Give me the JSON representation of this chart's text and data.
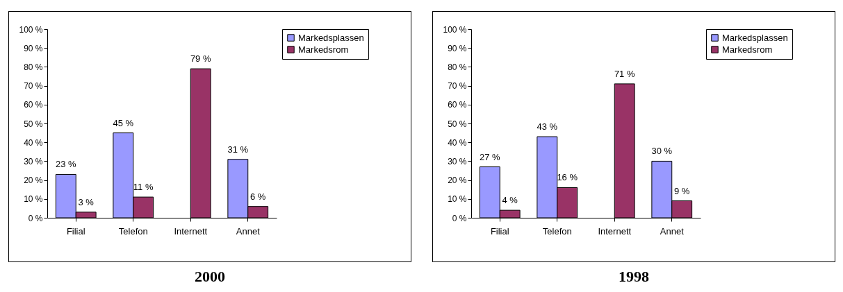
{
  "chart_data": [
    {
      "type": "bar",
      "title": "2000",
      "categories": [
        "Filial",
        "Telefon",
        "Internett",
        "Annet"
      ],
      "series": [
        {
          "name": "Markedsplassen",
          "color": "#9999ff",
          "values": [
            23,
            45,
            null,
            31
          ],
          "value_labels": [
            "23 %",
            "45 %",
            null,
            "31 %"
          ]
        },
        {
          "name": "Markedsrom",
          "color": "#993366",
          "values": [
            3,
            11,
            79,
            6
          ],
          "value_labels": [
            "3 %",
            "11 %",
            "79 %",
            "6 %"
          ]
        }
      ],
      "ylim": [
        0,
        100
      ],
      "yticks": [
        {
          "value": 0,
          "label": "0 %"
        },
        {
          "value": 10,
          "label": "10 %"
        },
        {
          "value": 20,
          "label": "20 %"
        },
        {
          "value": 30,
          "label": "30 %"
        },
        {
          "value": 40,
          "label": "40 %"
        },
        {
          "value": 50,
          "label": "50 %"
        },
        {
          "value": 60,
          "label": "60 %"
        },
        {
          "value": 70,
          "label": "70 %"
        },
        {
          "value": 80,
          "label": "80 %"
        },
        {
          "value": 90,
          "label": "90 %"
        },
        {
          "value": 100,
          "label": "100 %"
        }
      ],
      "grid": false,
      "legend": "right"
    },
    {
      "type": "bar",
      "title": "1998",
      "categories": [
        "Filial",
        "Telefon",
        "Internett",
        "Annet"
      ],
      "series": [
        {
          "name": "Markedsplassen",
          "color": "#9999ff",
          "values": [
            27,
            43,
            null,
            30
          ],
          "value_labels": [
            "27 %",
            "43 %",
            null,
            "30 %"
          ]
        },
        {
          "name": "Markedsrom",
          "color": "#993366",
          "values": [
            4,
            16,
            71,
            9
          ],
          "value_labels": [
            "4 %",
            "16 %",
            "71 %",
            "9 %"
          ]
        }
      ],
      "ylim": [
        0,
        100
      ],
      "yticks": [
        {
          "value": 0,
          "label": "0 %"
        },
        {
          "value": 10,
          "label": "10 %"
        },
        {
          "value": 20,
          "label": "20 %"
        },
        {
          "value": 30,
          "label": "30 %"
        },
        {
          "value": 40,
          "label": "40 %"
        },
        {
          "value": 50,
          "label": "50 %"
        },
        {
          "value": 60,
          "label": "60 %"
        },
        {
          "value": 70,
          "label": "70 %"
        },
        {
          "value": 80,
          "label": "80 %"
        },
        {
          "value": 90,
          "label": "90 %"
        },
        {
          "value": 100,
          "label": "100 %"
        }
      ],
      "grid": false,
      "legend": "right"
    }
  ]
}
